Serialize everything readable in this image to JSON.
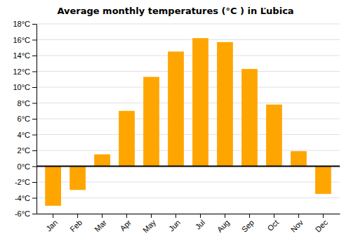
{
  "chart_data": {
    "type": "bar",
    "title": "Average monthly temperatures (°C ) in Ľubica",
    "categories": [
      "Jan",
      "Feb",
      "Mar",
      "Apr",
      "May",
      "Jun",
      "Jul",
      "Aug",
      "Sep",
      "Oct",
      "Nov",
      "Dec"
    ],
    "values": [
      -5.0,
      -3.0,
      1.5,
      7.0,
      11.3,
      14.5,
      16.2,
      15.7,
      12.3,
      7.8,
      1.9,
      -3.5
    ],
    "color": "#FFA500",
    "ylim": [
      -6,
      18
    ],
    "yticks": [
      {
        "value": -6,
        "label": "-6°C"
      },
      {
        "value": -4,
        "label": "-4°C"
      },
      {
        "value": -2,
        "label": "-2°C"
      },
      {
        "value": 0,
        "label": "0°C"
      },
      {
        "value": 2,
        "label": "2°C"
      },
      {
        "value": 4,
        "label": "4°C"
      },
      {
        "value": 6,
        "label": "6°C"
      },
      {
        "value": 8,
        "label": "8°C"
      },
      {
        "value": 10,
        "label": "10°C"
      },
      {
        "value": 12,
        "label": "12°C"
      },
      {
        "value": 14,
        "label": "14°C"
      },
      {
        "value": 16,
        "label": "16°C"
      },
      {
        "value": 18,
        "label": "18°C"
      }
    ],
    "grid": true
  }
}
